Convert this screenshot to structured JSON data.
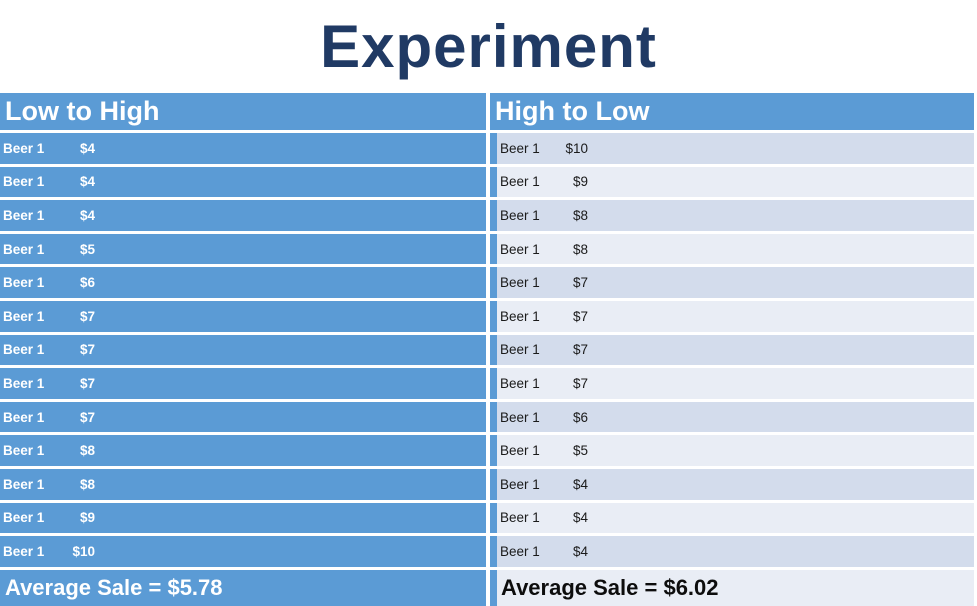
{
  "title": "Experiment",
  "colors": {
    "accent_blue": "#5B9BD5",
    "band_dark": "#D3DCEC",
    "band_light": "#E9EDF5",
    "title_navy": "#203A64",
    "header_text": "#FFFFFF",
    "row_text": "#1A1A1A"
  },
  "table": {
    "columns": [
      {
        "header": "Low to High",
        "rows": [
          {
            "item": "Beer 1",
            "price": "$4"
          },
          {
            "item": "Beer 1",
            "price": "$4"
          },
          {
            "item": "Beer 1",
            "price": "$4"
          },
          {
            "item": "Beer 1",
            "price": "$5"
          },
          {
            "item": "Beer 1",
            "price": "$6"
          },
          {
            "item": "Beer 1",
            "price": "$7"
          },
          {
            "item": "Beer 1",
            "price": "$7"
          },
          {
            "item": "Beer 1",
            "price": "$7"
          },
          {
            "item": "Beer 1",
            "price": "$7"
          },
          {
            "item": "Beer 1",
            "price": "$8"
          },
          {
            "item": "Beer 1",
            "price": "$8"
          },
          {
            "item": "Beer 1",
            "price": "$9"
          },
          {
            "item": "Beer 1",
            "price": "$10"
          }
        ],
        "average": "Average Sale = $5.78"
      },
      {
        "header": "High to Low",
        "rows": [
          {
            "item": "Beer 1",
            "price": "$10"
          },
          {
            "item": "Beer 1",
            "price": "$9"
          },
          {
            "item": "Beer 1",
            "price": "$8"
          },
          {
            "item": "Beer 1",
            "price": "$8"
          },
          {
            "item": "Beer 1",
            "price": "$7"
          },
          {
            "item": "Beer 1",
            "price": "$7"
          },
          {
            "item": "Beer 1",
            "price": "$7"
          },
          {
            "item": "Beer 1",
            "price": "$7"
          },
          {
            "item": "Beer 1",
            "price": "$6"
          },
          {
            "item": "Beer 1",
            "price": "$5"
          },
          {
            "item": "Beer 1",
            "price": "$4"
          },
          {
            "item": "Beer 1",
            "price": "$4"
          },
          {
            "item": "Beer 1",
            "price": "$4"
          }
        ],
        "average": "Average Sale = $6.02"
      }
    ]
  }
}
